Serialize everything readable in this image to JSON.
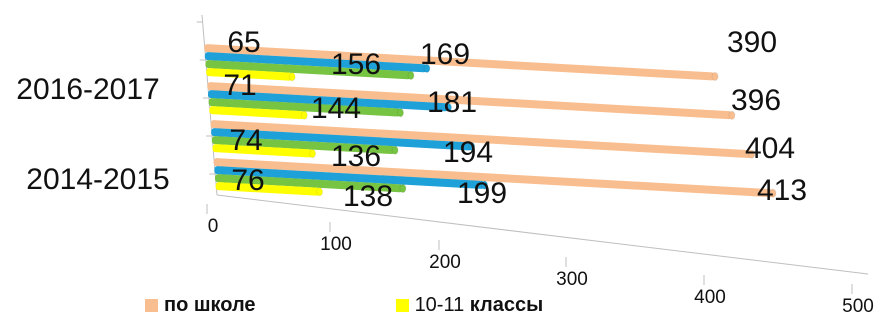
{
  "chart_data": {
    "type": "bar",
    "orientation": "horizontal",
    "style": "3d-perspective",
    "categories": [
      "2014-2015",
      "",
      "2016-2017",
      ""
    ],
    "category_labels_shown": [
      "2016-2017",
      "2014-2015"
    ],
    "series": [
      {
        "name": "по школе",
        "color": "#F9BE8F",
        "values": [
          413,
          404,
          396,
          390
        ]
      },
      {
        "name": "",
        "color": "#1EA0D8",
        "values": [
          199,
          194,
          181,
          169
        ]
      },
      {
        "name": "",
        "color": "#76C442",
        "values": [
          138,
          136,
          144,
          156
        ]
      },
      {
        "name": "10-11 классы",
        "color": "#FFFF00",
        "values": [
          76,
          74,
          71,
          65
        ]
      }
    ],
    "xlim": [
      0,
      500
    ],
    "xticks": [
      0,
      100,
      200,
      300,
      400,
      500
    ],
    "legend": {
      "position": "bottom",
      "items": [
        {
          "prefix": "",
          "bold": "по школе",
          "color": "#F9BE8F"
        },
        {
          "prefix": "10-11 ",
          "bold": "классы",
          "color": "#FFFF00"
        }
      ]
    }
  }
}
